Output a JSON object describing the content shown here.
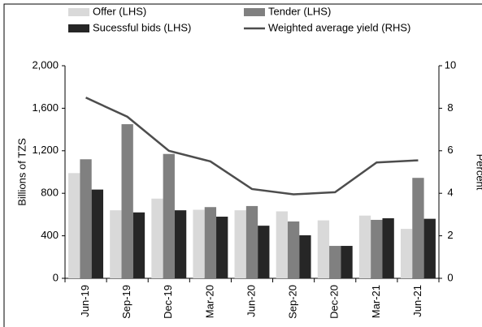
{
  "chart_data": {
    "type": "bar",
    "categories": [
      "Jun-19",
      "Sep-19",
      "Dec-19",
      "Mar-20",
      "Jun-20",
      "Sep-20",
      "Dec-20",
      "Mar-21",
      "Jun-21"
    ],
    "series": [
      {
        "name": "Offer (LHS)",
        "color": "#d9d9d9",
        "values": [
          990,
          640,
          750,
          645,
          640,
          630,
          545,
          590,
          465
        ]
      },
      {
        "name": "Tender (LHS)",
        "color": "#808080",
        "values": [
          1120,
          1450,
          1170,
          670,
          680,
          535,
          305,
          550,
          945
        ]
      },
      {
        "name": "Sucessful bids (LHS)",
        "color": "#262626",
        "values": [
          835,
          620,
          640,
          580,
          495,
          405,
          305,
          565,
          560
        ]
      },
      {
        "name": "Weighted average yield (RHS)",
        "color": "#4d4d4d",
        "axis": "y2",
        "type": "line",
        "values": [
          8.5,
          7.6,
          6.0,
          5.5,
          4.2,
          3.95,
          4.05,
          5.45,
          5.55
        ]
      }
    ],
    "y_label": "Billions of TZS",
    "y2_label": "Percent",
    "ylim": [
      0,
      2000
    ],
    "yticks": [
      0,
      400,
      800,
      {
        "value": 1200,
        "label": "1,200"
      },
      {
        "value": 1600,
        "label": "1,600"
      },
      {
        "value": 2000,
        "label": "2,000"
      }
    ],
    "y2lim": [
      0,
      10
    ],
    "y2ticks": [
      0,
      2,
      4,
      6,
      8,
      10
    ],
    "legend": "top"
  }
}
